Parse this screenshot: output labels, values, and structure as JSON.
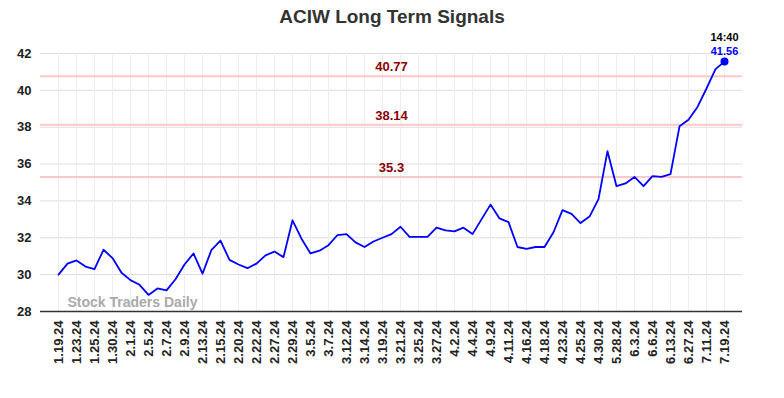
{
  "chart_data": {
    "type": "line",
    "title": "ACIW Long Term Signals",
    "categories": [
      "1.19.24",
      null,
      "1.23.24",
      null,
      "1.25.24",
      null,
      "1.30.24",
      null,
      "2.1.24",
      null,
      "2.5.24",
      null,
      "2.7.24",
      null,
      "2.9.24",
      null,
      "2.13.24",
      null,
      "2.15.24",
      null,
      "2.20.24",
      null,
      "2.22.24",
      null,
      "2.27.24",
      null,
      "2.29.24",
      null,
      "3.5.24",
      null,
      "3.7.24",
      null,
      "3.12.24",
      null,
      "3.14.24",
      null,
      "3.19.24",
      null,
      "3.21.24",
      null,
      "3.25.24",
      null,
      "3.27.24",
      null,
      "4.2.24",
      null,
      "4.4.24",
      null,
      "4.9.24",
      null,
      "4.11.24",
      null,
      "4.16.24",
      null,
      "4.18.24",
      null,
      "4.23.24",
      null,
      "4.25.24",
      null,
      "4.30.24",
      null,
      "5.28.24",
      null,
      "6.3.24",
      null,
      "6.6.24",
      null,
      "6.13.24",
      null,
      "6.27.24",
      null,
      "7.11.24",
      null,
      "7.19.24"
    ],
    "values": [
      30.0,
      30.6,
      30.77,
      30.44,
      30.3,
      31.35,
      30.9,
      30.1,
      29.7,
      29.45,
      28.9,
      29.25,
      29.15,
      29.75,
      30.55,
      31.15,
      30.05,
      31.35,
      31.85,
      30.8,
      30.55,
      30.35,
      30.6,
      31.05,
      31.25,
      30.95,
      32.95,
      31.95,
      31.15,
      31.3,
      31.6,
      32.15,
      32.2,
      31.75,
      31.5,
      31.8,
      32.0,
      32.2,
      32.6,
      32.05,
      32.05,
      32.05,
      32.55,
      32.4,
      32.35,
      32.55,
      32.2,
      33.0,
      33.8,
      33.05,
      32.85,
      31.5,
      31.4,
      31.5,
      31.5,
      32.3,
      33.5,
      33.3,
      32.8,
      33.15,
      34.1,
      36.7,
      34.8,
      34.95,
      35.3,
      34.8,
      35.35,
      35.3,
      35.45,
      38.05,
      38.4,
      39.1,
      40.1,
      41.15,
      41.56
    ],
    "color": "#0000ff",
    "ylim": [
      28,
      42
    ],
    "yticks": [
      28,
      30,
      32,
      34,
      36,
      38,
      40,
      42
    ],
    "grid": true,
    "reference_lines": [
      40.77,
      38.14,
      35.3
    ],
    "watermark": "Stock Traders Daily",
    "last_label": "14:40"
  }
}
